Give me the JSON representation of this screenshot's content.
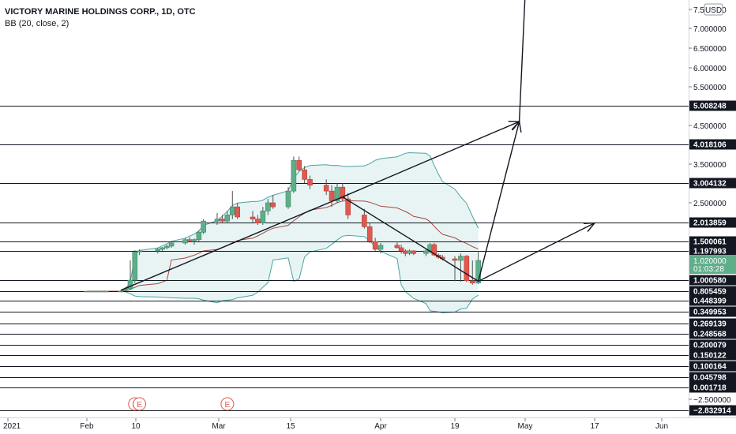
{
  "legend": {
    "title": "VICTORY MARINE HOLDINGS CORP., 1D, OTC",
    "indicator": "BB (20, close, 2)"
  },
  "chart_data": {
    "type": "candlestick",
    "currency": "USD",
    "price_axis": {
      "scale": "log",
      "ticks": [
        "7.500000",
        "7.000000",
        "6.500000",
        "6.000000",
        "5.500000",
        "4.500000",
        "3.500000",
        "2.500000",
        "−2.500000"
      ]
    },
    "time_axis": {
      "labels": [
        "2021",
        "Feb",
        "10",
        "Mar",
        "15",
        "Apr",
        "19",
        "May",
        "17",
        "Jun"
      ]
    },
    "horizontal_levels": [
      {
        "label": "5.008248",
        "value": 5.008248
      },
      {
        "label": "4.018106",
        "value": 4.018106
      },
      {
        "label": "3.004132",
        "value": 3.004132
      },
      {
        "label": "2.013859",
        "value": 2.013859
      },
      {
        "label": "1.500061",
        "value": 1.500061
      },
      {
        "label": "1.197993",
        "value": 1.197993
      },
      {
        "label": "1.000580",
        "value": 1.00058
      },
      {
        "label": "0.805459",
        "value": 0.805459
      },
      {
        "label": "0.448399",
        "value": 0.448399
      },
      {
        "label": "0.349953",
        "value": 0.349953
      },
      {
        "label": "0.269139",
        "value": 0.269139
      },
      {
        "label": "0.248568",
        "value": 0.248568
      },
      {
        "label": "0.200079",
        "value": 0.200079
      },
      {
        "label": "0.150122",
        "value": 0.150122
      },
      {
        "label": "0.100164",
        "value": 0.100164
      },
      {
        "label": "0.045798",
        "value": 0.045798
      },
      {
        "label": "0.001718",
        "value": 0.001718
      },
      {
        "label": "−2.832914",
        "value": -2.832914
      }
    ],
    "last_price": {
      "label": "1.020000",
      "countdown": "01:03:28",
      "value": 1.02
    },
    "earnings_markers": [
      {
        "label": "E",
        "date": "Feb 11"
      },
      {
        "label": "E",
        "date": "Feb 12"
      },
      {
        "label": "E",
        "date": "Mar 3"
      }
    ],
    "candles": [
      {
        "d": "Feb 1",
        "o": 0.805,
        "h": 0.806,
        "l": 0.804,
        "c": 0.805
      },
      {
        "d": "Feb 2",
        "o": 0.805,
        "h": 0.806,
        "l": 0.804,
        "c": 0.805
      },
      {
        "d": "Feb 3",
        "o": 0.805,
        "h": 0.806,
        "l": 0.804,
        "c": 0.805
      },
      {
        "d": "Feb 4",
        "o": 0.805,
        "h": 0.806,
        "l": 0.804,
        "c": 0.805
      },
      {
        "d": "Feb 5",
        "o": 0.805,
        "h": 0.806,
        "l": 0.804,
        "c": 0.805
      },
      {
        "d": "Feb 8",
        "o": 0.805,
        "h": 0.806,
        "l": 0.804,
        "c": 0.805
      },
      {
        "d": "Feb 9",
        "o": 0.82,
        "h": 0.88,
        "l": 0.81,
        "c": 0.85
      },
      {
        "d": "Feb 10",
        "o": 0.85,
        "h": 1.02,
        "l": 0.83,
        "c": 1.0
      },
      {
        "d": "Feb 11",
        "o": 1.0,
        "h": 1.22,
        "l": 0.95,
        "c": 1.18
      },
      {
        "d": "Feb 12",
        "o": 1.18,
        "h": 1.25,
        "l": 1.12,
        "c": 1.2
      },
      {
        "d": "Feb 16",
        "o": 1.2,
        "h": 1.3,
        "l": 1.15,
        "c": 1.25
      },
      {
        "d": "Feb 17",
        "o": 1.25,
        "h": 1.32,
        "l": 1.2,
        "c": 1.3
      },
      {
        "d": "Feb 18",
        "o": 1.3,
        "h": 1.4,
        "l": 1.25,
        "c": 1.35
      },
      {
        "d": "Feb 19",
        "o": 1.35,
        "h": 1.5,
        "l": 1.3,
        "c": 1.45
      },
      {
        "d": "Feb 22",
        "o": 1.45,
        "h": 1.6,
        "l": 1.4,
        "c": 1.55
      },
      {
        "d": "Feb 23",
        "o": 1.55,
        "h": 1.62,
        "l": 1.48,
        "c": 1.52
      },
      {
        "d": "Feb 24",
        "o": 1.52,
        "h": 1.58,
        "l": 1.4,
        "c": 1.55
      },
      {
        "d": "Feb 25",
        "o": 1.55,
        "h": 1.8,
        "l": 1.5,
        "c": 1.75
      },
      {
        "d": "Feb 26",
        "o": 1.75,
        "h": 2.1,
        "l": 1.7,
        "c": 2.05
      },
      {
        "d": "Mar 1",
        "o": 2.05,
        "h": 2.25,
        "l": 1.95,
        "c": 2.1
      },
      {
        "d": "Mar 2",
        "o": 2.1,
        "h": 2.2,
        "l": 2.0,
        "c": 2.05
      },
      {
        "d": "Mar 3",
        "o": 2.05,
        "h": 2.3,
        "l": 2.0,
        "c": 2.2
      },
      {
        "d": "Mar 4",
        "o": 2.2,
        "h": 2.8,
        "l": 2.1,
        "c": 2.4
      },
      {
        "d": "Mar 5",
        "o": 2.4,
        "h": 2.5,
        "l": 2.1,
        "c": 2.15
      },
      {
        "d": "Mar 8",
        "o": 2.15,
        "h": 2.3,
        "l": 2.0,
        "c": 2.1
      },
      {
        "d": "Mar 9",
        "o": 2.1,
        "h": 2.2,
        "l": 1.95,
        "c": 2.0
      },
      {
        "d": "Mar 10",
        "o": 2.0,
        "h": 2.4,
        "l": 1.95,
        "c": 2.3
      },
      {
        "d": "Mar 11",
        "o": 2.3,
        "h": 2.6,
        "l": 2.2,
        "c": 2.5
      },
      {
        "d": "Mar 12",
        "o": 2.5,
        "h": 2.7,
        "l": 2.35,
        "c": 2.4
      },
      {
        "d": "Mar 15",
        "o": 2.4,
        "h": 2.9,
        "l": 2.35,
        "c": 2.8
      },
      {
        "d": "Mar 16",
        "o": 2.8,
        "h": 3.7,
        "l": 2.75,
        "c": 3.6
      },
      {
        "d": "Mar 17",
        "o": 3.6,
        "h": 3.7,
        "l": 3.3,
        "c": 3.35
      },
      {
        "d": "Mar 18",
        "o": 3.35,
        "h": 3.45,
        "l": 3.0,
        "c": 3.1
      },
      {
        "d": "Mar 19",
        "o": 3.1,
        "h": 3.2,
        "l": 2.85,
        "c": 2.95
      },
      {
        "d": "Mar 22",
        "o": 2.95,
        "h": 3.1,
        "l": 2.7,
        "c": 2.8
      },
      {
        "d": "Mar 23",
        "o": 2.8,
        "h": 2.95,
        "l": 2.4,
        "c": 2.55
      },
      {
        "d": "Mar 24",
        "o": 2.55,
        "h": 3.0,
        "l": 2.5,
        "c": 2.9
      },
      {
        "d": "Mar 25",
        "o": 2.9,
        "h": 3.0,
        "l": 2.55,
        "c": 2.6
      },
      {
        "d": "Mar 26",
        "o": 2.6,
        "h": 2.75,
        "l": 2.1,
        "c": 2.2
      },
      {
        "d": "Mar 29",
        "o": 2.2,
        "h": 2.35,
        "l": 1.85,
        "c": 1.9
      },
      {
        "d": "Mar 30",
        "o": 1.9,
        "h": 2.0,
        "l": 1.45,
        "c": 1.5
      },
      {
        "d": "Mar 31",
        "o": 1.5,
        "h": 1.6,
        "l": 1.2,
        "c": 1.25
      },
      {
        "d": "Apr 1",
        "o": 1.25,
        "h": 1.45,
        "l": 1.15,
        "c": 1.38
      },
      {
        "d": "Apr 5",
        "o": 1.38,
        "h": 1.5,
        "l": 1.28,
        "c": 1.3
      },
      {
        "d": "Apr 6",
        "o": 1.3,
        "h": 1.4,
        "l": 1.15,
        "c": 1.2
      },
      {
        "d": "Apr 7",
        "o": 1.2,
        "h": 1.25,
        "l": 1.1,
        "c": 1.15
      },
      {
        "d": "Apr 8",
        "o": 1.15,
        "h": 1.25,
        "l": 1.12,
        "c": 1.2
      },
      {
        "d": "Apr 9",
        "o": 1.2,
        "h": 1.22,
        "l": 1.12,
        "c": 1.15
      },
      {
        "d": "Apr 12",
        "o": 1.15,
        "h": 1.25,
        "l": 1.1,
        "c": 1.2
      },
      {
        "d": "Apr 13",
        "o": 1.2,
        "h": 1.45,
        "l": 1.15,
        "c": 1.4
      },
      {
        "d": "Apr 14",
        "o": 1.4,
        "h": 1.45,
        "l": 1.1,
        "c": 1.12
      },
      {
        "d": "Apr 15",
        "o": 1.12,
        "h": 1.15,
        "l": 1.05,
        "c": 1.08
      },
      {
        "d": "Apr 16",
        "o": 1.08,
        "h": 1.12,
        "l": 1.02,
        "c": 1.05
      },
      {
        "d": "Apr 19",
        "o": 1.05,
        "h": 1.1,
        "l": 0.98,
        "c": 1.02
      },
      {
        "d": "Apr 20",
        "o": 1.02,
        "h": 1.15,
        "l": 0.97,
        "c": 1.1
      },
      {
        "d": "Apr 21",
        "o": 1.1,
        "h": 1.12,
        "l": 0.97,
        "c": 0.99
      },
      {
        "d": "Apr 22",
        "o": 0.99,
        "h": 1.02,
        "l": 0.92,
        "c": 0.95
      },
      {
        "d": "Apr 23",
        "o": 0.95,
        "h": 1.2,
        "l": 0.93,
        "c": 1.02
      }
    ],
    "drawings": [
      {
        "type": "trendline",
        "from": {
          "d": "Feb 8",
          "v": 0.82
        },
        "to": {
          "d": "Mar 25",
          "v": 2.65
        }
      },
      {
        "type": "trendline",
        "from": {
          "d": "Mar 25",
          "v": 2.65
        },
        "to": {
          "d": "Apr 23",
          "v": 0.98
        }
      },
      {
        "type": "arrow",
        "from": {
          "d": "Mar 25",
          "v": 2.65
        },
        "to": {
          "d": "Apr 30",
          "v": 4.6
        }
      },
      {
        "type": "arrow",
        "from": {
          "d": "Apr 23",
          "v": 0.98
        },
        "to": {
          "d": "Apr 30",
          "v": 4.6
        }
      },
      {
        "type": "arrow",
        "from": {
          "d": "Apr 23",
          "v": 0.98
        },
        "to": {
          "d": "May 17",
          "v": 2.0
        }
      },
      {
        "type": "line",
        "from": {
          "d": "Apr 30",
          "v": 4.6
        },
        "to": {
          "d": "May 1",
          "v": 7.9
        }
      }
    ]
  },
  "colors": {
    "up": "#5fae8a",
    "down": "#e0584f",
    "wick": "#535353",
    "bb_band": "#4aa3a2",
    "bb_basis": "#a5473f",
    "bb_fill": "#e8f4f4",
    "axis_label_bg": "#131722",
    "last_price_bg": "#5fae8a",
    "earnings": "#e0584f"
  }
}
